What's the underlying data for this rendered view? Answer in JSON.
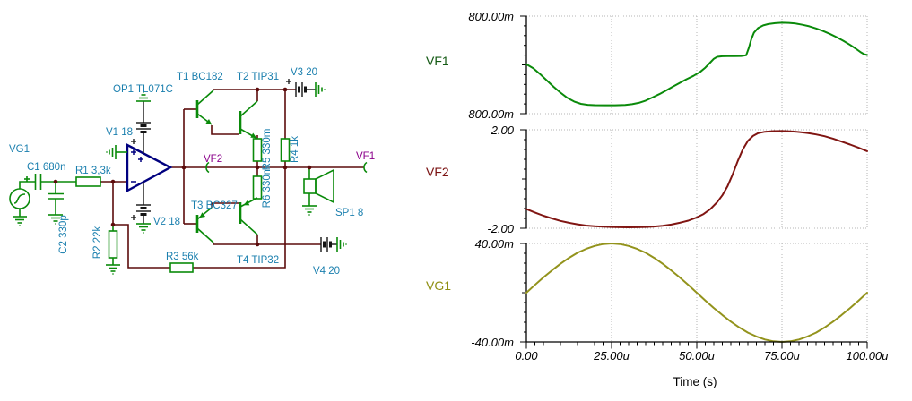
{
  "circuit": {
    "labels": {
      "vg1": "VG1",
      "c1": "C1 680n",
      "c2": "C2 330p",
      "r1": "R1 3,3k",
      "r2": "R2 22k",
      "r3": "R3 56k",
      "op1": "OP1 TL071C",
      "v1": "V1 18",
      "v2": "V2 18",
      "t1": "T1 BC182",
      "t2": "T2 TIP31",
      "t3": "T3 BC327",
      "t4": "T4 TIP32",
      "r5": "R5 330m",
      "r6": "R6 330m",
      "r4": "R4 1k",
      "v3": "V3 20",
      "v4": "V4 20",
      "sp1": "SP1 8",
      "vf1_pin": "VF1",
      "vf2_pin": "VF2"
    },
    "colors": {
      "wire": "#5c0b0b",
      "component": "#0a8a0a",
      "label": "#1a7fae",
      "probe_label": "#8b008b",
      "opamp": "#00007f",
      "battery": "#141414"
    }
  },
  "chart_data": [
    {
      "type": "line",
      "name": "VF1",
      "color": "#0a8a0a",
      "label_color": "#135913",
      "ymax_label": "800.00m",
      "ymin_label": "-800.00m",
      "ylim": [
        -800,
        800
      ],
      "points": [
        [
          0,
          10
        ],
        [
          2,
          -55
        ],
        [
          4,
          -150
        ],
        [
          6,
          -255
        ],
        [
          8,
          -360
        ],
        [
          10,
          -455
        ],
        [
          12,
          -540
        ],
        [
          14,
          -600
        ],
        [
          16,
          -638
        ],
        [
          18,
          -655
        ],
        [
          20,
          -660
        ],
        [
          23,
          -662
        ],
        [
          26,
          -662
        ],
        [
          29,
          -656
        ],
        [
          31,
          -645
        ],
        [
          33,
          -622
        ],
        [
          35,
          -585
        ],
        [
          37,
          -535
        ],
        [
          39,
          -480
        ],
        [
          41,
          -420
        ],
        [
          43,
          -355
        ],
        [
          45,
          -295
        ],
        [
          47,
          -235
        ],
        [
          49,
          -180
        ],
        [
          51,
          -115
        ],
        [
          52.5,
          -45
        ],
        [
          53.8,
          30
        ],
        [
          55,
          100
        ],
        [
          56,
          132
        ],
        [
          57.5,
          141
        ],
        [
          59,
          143
        ],
        [
          61,
          144
        ],
        [
          63,
          146
        ],
        [
          64.5,
          158
        ],
        [
          65.3,
          280
        ],
        [
          66,
          420
        ],
        [
          66.8,
          530
        ],
        [
          68,
          605
        ],
        [
          69.5,
          648
        ],
        [
          71,
          670
        ],
        [
          73,
          684
        ],
        [
          75,
          691
        ],
        [
          77,
          689
        ],
        [
          79,
          678
        ],
        [
          81,
          658
        ],
        [
          83,
          632
        ],
        [
          85,
          598
        ],
        [
          87,
          556
        ],
        [
          89,
          510
        ],
        [
          91,
          455
        ],
        [
          93,
          395
        ],
        [
          95,
          328
        ],
        [
          96.5,
          272
        ],
        [
          98,
          212
        ],
        [
          99,
          178
        ],
        [
          100,
          162
        ]
      ]
    },
    {
      "type": "line",
      "name": "VF2",
      "color": "#801512",
      "label_color": "#7a1212",
      "ymax_label": "2.00",
      "ymin_label": "-2.00",
      "ylim": [
        -2,
        2
      ],
      "points": [
        [
          0,
          -1.22
        ],
        [
          2.5,
          -1.36
        ],
        [
          5,
          -1.49
        ],
        [
          7.5,
          -1.6
        ],
        [
          10,
          -1.7
        ],
        [
          12.5,
          -1.78
        ],
        [
          15,
          -1.84
        ],
        [
          17.5,
          -1.89
        ],
        [
          20,
          -1.92
        ],
        [
          22.5,
          -1.94
        ],
        [
          25,
          -1.95
        ],
        [
          27.5,
          -1.96
        ],
        [
          30,
          -1.965
        ],
        [
          32.5,
          -1.96
        ],
        [
          35,
          -1.95
        ],
        [
          37.5,
          -1.93
        ],
        [
          40,
          -1.9
        ],
        [
          42.5,
          -1.85
        ],
        [
          45,
          -1.78
        ],
        [
          47.5,
          -1.69
        ],
        [
          50,
          -1.56
        ],
        [
          52,
          -1.42
        ],
        [
          54,
          -1.22
        ],
        [
          56,
          -0.94
        ],
        [
          57.5,
          -0.66
        ],
        [
          59,
          -0.3
        ],
        [
          60.5,
          0.18
        ],
        [
          62,
          0.72
        ],
        [
          63.5,
          1.2
        ],
        [
          65,
          1.55
        ],
        [
          66.5,
          1.75
        ],
        [
          68,
          1.86
        ],
        [
          70,
          1.92
        ],
        [
          72.5,
          1.945
        ],
        [
          75,
          1.95
        ],
        [
          77.5,
          1.94
        ],
        [
          80,
          1.91
        ],
        [
          82.5,
          1.87
        ],
        [
          85,
          1.81
        ],
        [
          87.5,
          1.74
        ],
        [
          90,
          1.64
        ],
        [
          92.5,
          1.52
        ],
        [
          95,
          1.4
        ],
        [
          97.5,
          1.27
        ],
        [
          100,
          1.13
        ]
      ]
    },
    {
      "type": "line",
      "name": "VG1",
      "color": "#93931c",
      "label_color": "#8f8f12",
      "ymax_label": "40.00m",
      "ymin_label": "-40.00m",
      "ylim": [
        -40,
        40
      ],
      "points": [
        [
          0,
          0
        ],
        [
          2.5,
          6.3
        ],
        [
          5,
          12.4
        ],
        [
          7.5,
          18.1
        ],
        [
          10,
          23.5
        ],
        [
          12.5,
          28.3
        ],
        [
          15,
          32.4
        ],
        [
          17.5,
          35.6
        ],
        [
          20,
          38
        ],
        [
          22.5,
          39.5
        ],
        [
          25,
          40
        ],
        [
          27.5,
          39.5
        ],
        [
          30,
          38
        ],
        [
          32.5,
          35.6
        ],
        [
          35,
          32.4
        ],
        [
          37.5,
          28.3
        ],
        [
          40,
          23.5
        ],
        [
          42.5,
          18.1
        ],
        [
          45,
          12.4
        ],
        [
          47.5,
          6.3
        ],
        [
          50,
          0
        ],
        [
          52.5,
          -6.3
        ],
        [
          55,
          -12.4
        ],
        [
          57.5,
          -18.1
        ],
        [
          60,
          -23.5
        ],
        [
          62.5,
          -28.3
        ],
        [
          65,
          -32.4
        ],
        [
          67.5,
          -35.6
        ],
        [
          70,
          -38
        ],
        [
          72.5,
          -39.5
        ],
        [
          75,
          -40
        ],
        [
          77.5,
          -39.5
        ],
        [
          80,
          -38
        ],
        [
          82.5,
          -35.6
        ],
        [
          85,
          -32.4
        ],
        [
          87.5,
          -28.3
        ],
        [
          90,
          -23.5
        ],
        [
          92.5,
          -18.1
        ],
        [
          95,
          -12.4
        ],
        [
          97.5,
          -6.3
        ],
        [
          100,
          0
        ]
      ]
    }
  ],
  "time_axis": {
    "title": "Time (s)",
    "tick_labels": [
      "0.00",
      "25.00u",
      "50.00u",
      "75.00u",
      "100.00u"
    ],
    "tick_values": [
      0,
      25,
      50,
      75,
      100
    ],
    "grid_values": [
      25,
      50,
      75
    ],
    "range": [
      0,
      100
    ],
    "major_step": 25,
    "minor_step": 2.5
  }
}
